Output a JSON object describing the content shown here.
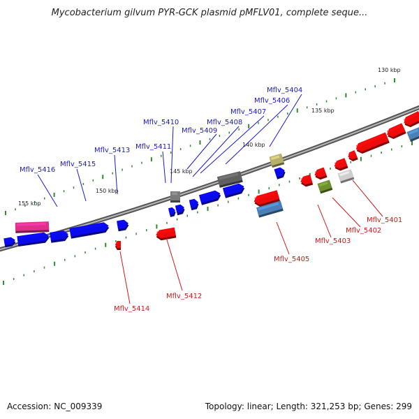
{
  "title": "Mycobacterium gilvum PYR-GCK plasmid pMFLV01, complete seque...",
  "footer": {
    "accession": "Accession: NC_009339",
    "topology": "Topology: linear; Length: 321,253 bp; Genes: 299"
  },
  "colors": {
    "forward_label": "#1a1acc",
    "reverse_label": "#cc1a1a",
    "forward_gene": "#0a0aee",
    "reverse_gene": "#ee0a0a",
    "backbone": "#8a8a8a",
    "tick": "#2e8b2e"
  },
  "ticks": [
    {
      "label": "130 kbp"
    },
    {
      "label": "135 kbp"
    },
    {
      "label": "140 kbp"
    },
    {
      "label": "145 kbp"
    },
    {
      "label": "150 kbp"
    },
    {
      "label": "155 kbp"
    }
  ],
  "genes": [
    {
      "id": "Mflv_5401",
      "strand": "reverse"
    },
    {
      "id": "Mflv_5402",
      "strand": "reverse"
    },
    {
      "id": "Mflv_5403",
      "strand": "reverse"
    },
    {
      "id": "Mflv_5404",
      "strand": "forward"
    },
    {
      "id": "Mflv_5405",
      "strand": "reverse"
    },
    {
      "id": "Mflv_5406",
      "strand": "forward"
    },
    {
      "id": "Mflv_5407",
      "strand": "forward"
    },
    {
      "id": "Mflv_5408",
      "strand": "forward"
    },
    {
      "id": "Mflv_5409",
      "strand": "forward"
    },
    {
      "id": "Mflv_5410",
      "strand": "forward"
    },
    {
      "id": "Mflv_5411",
      "strand": "forward"
    },
    {
      "id": "Mflv_5412",
      "strand": "reverse"
    },
    {
      "id": "Mflv_5413",
      "strand": "forward"
    },
    {
      "id": "Mflv_5414",
      "strand": "reverse"
    },
    {
      "id": "Mflv_5415",
      "strand": "forward"
    },
    {
      "id": "Mflv_5416",
      "strand": "forward"
    }
  ]
}
